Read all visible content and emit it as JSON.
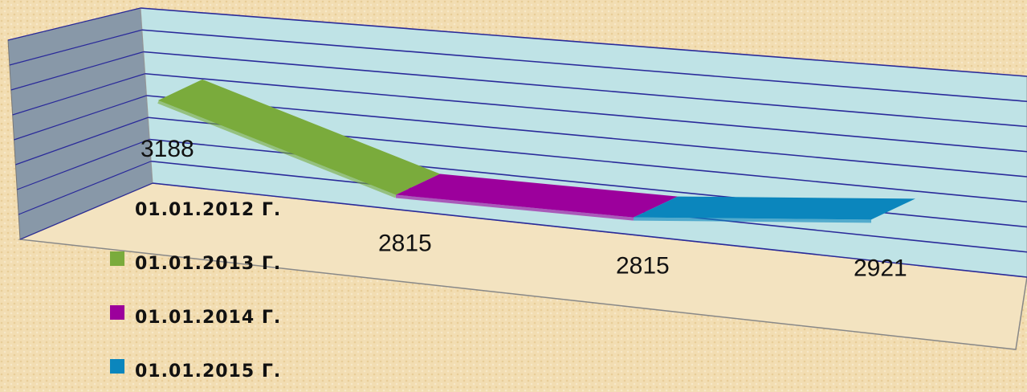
{
  "chart_data": {
    "type": "line",
    "categories": [
      "01.01.2012 Г.",
      "01.01.2013 Г.",
      "01.01.2014 Г.",
      "01.01.2015 Г."
    ],
    "values": [
      3188,
      2815,
      2815,
      2921
    ],
    "colors": [
      null,
      "#7aab3c",
      "#9c009c",
      "#0b86bd"
    ],
    "ylim": [
      2600,
      3400
    ],
    "yticks": [
      2600,
      2700,
      2800,
      2900,
      3000,
      3100,
      3200,
      3300,
      3400
    ],
    "grid": true
  }
}
